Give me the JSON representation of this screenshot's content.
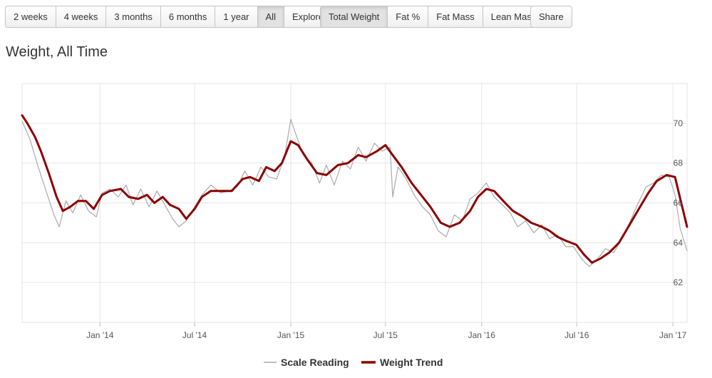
{
  "toolbar": {
    "range_buttons": [
      {
        "label": "2 weeks",
        "active": false
      },
      {
        "label": "4 weeks",
        "active": false
      },
      {
        "label": "3 months",
        "active": false
      },
      {
        "label": "6 months",
        "active": false
      },
      {
        "label": "1 year",
        "active": false
      },
      {
        "label": "All",
        "active": true
      },
      {
        "label": "Explore",
        "active": false
      }
    ],
    "metric_buttons": [
      {
        "label": "Total Weight",
        "active": true
      },
      {
        "label": "Fat %",
        "active": false
      },
      {
        "label": "Fat Mass",
        "active": false
      },
      {
        "label": "Lean Mass",
        "active": false
      }
    ],
    "share_label": "Share"
  },
  "chart_data": {
    "type": "line",
    "title": "Weight, All Time",
    "x_tick_labels": [
      "Jan '14",
      "Jul '14",
      "Jan '15",
      "Jul '15",
      "Jan '16",
      "Jul '16",
      "Jan '17"
    ],
    "x_ticks": [
      "2014-01-01",
      "2014-07-01",
      "2015-01-01",
      "2015-07-01",
      "2016-01-01",
      "2016-07-01",
      "2017-01-01"
    ],
    "xlim": [
      "2013-08-05",
      "2017-01-28"
    ],
    "y_ticks": [
      62,
      64,
      66,
      68,
      70
    ],
    "ylim": [
      60,
      72
    ],
    "grid": true,
    "legend_placement": "bottom-center",
    "series": [
      {
        "name": "Scale Reading",
        "color": "#aaaaaa",
        "points": [
          [
            "2013-08-05",
            70.1
          ],
          [
            "2013-08-20",
            69.2
          ],
          [
            "2013-09-05",
            67.8
          ],
          [
            "2013-09-20",
            66.6
          ],
          [
            "2013-10-05",
            65.4
          ],
          [
            "2013-10-15",
            64.8
          ],
          [
            "2013-10-28",
            66.1
          ],
          [
            "2013-11-10",
            65.5
          ],
          [
            "2013-11-25",
            66.4
          ],
          [
            "2013-12-10",
            65.6
          ],
          [
            "2013-12-25",
            65.3
          ],
          [
            "2014-01-05",
            66.5
          ],
          [
            "2014-01-20",
            66.7
          ],
          [
            "2014-02-05",
            66.3
          ],
          [
            "2014-02-20",
            66.9
          ],
          [
            "2014-03-05",
            65.9
          ],
          [
            "2014-03-20",
            66.7
          ],
          [
            "2014-04-05",
            65.8
          ],
          [
            "2014-04-20",
            66.6
          ],
          [
            "2014-05-05",
            65.9
          ],
          [
            "2014-05-20",
            65.2
          ],
          [
            "2014-06-01",
            64.8
          ],
          [
            "2014-06-15",
            65.1
          ],
          [
            "2014-07-01",
            65.8
          ],
          [
            "2014-07-15",
            66.4
          ],
          [
            "2014-08-01",
            66.9
          ],
          [
            "2014-08-20",
            66.5
          ],
          [
            "2014-09-05",
            66.6
          ],
          [
            "2014-09-20",
            66.8
          ],
          [
            "2014-10-05",
            67.6
          ],
          [
            "2014-10-20",
            66.9
          ],
          [
            "2014-11-05",
            67.8
          ],
          [
            "2014-11-20",
            67.3
          ],
          [
            "2014-12-05",
            67.2
          ],
          [
            "2014-12-20",
            68.3
          ],
          [
            "2015-01-01",
            70.2
          ],
          [
            "2015-01-10",
            69.5
          ],
          [
            "2015-01-25",
            68.4
          ],
          [
            "2015-02-10",
            68.0
          ],
          [
            "2015-02-25",
            67.0
          ],
          [
            "2015-03-10",
            67.9
          ],
          [
            "2015-03-25",
            66.9
          ],
          [
            "2015-04-10",
            68.1
          ],
          [
            "2015-04-25",
            67.7
          ],
          [
            "2015-05-10",
            68.8
          ],
          [
            "2015-05-25",
            68.1
          ],
          [
            "2015-06-10",
            69.0
          ],
          [
            "2015-06-25",
            68.6
          ],
          [
            "2015-07-10",
            68.8
          ],
          [
            "2015-07-15",
            66.3
          ],
          [
            "2015-07-25",
            67.8
          ],
          [
            "2015-08-10",
            67.2
          ],
          [
            "2015-08-25",
            66.4
          ],
          [
            "2015-09-10",
            65.8
          ],
          [
            "2015-09-25",
            65.4
          ],
          [
            "2015-10-10",
            64.6
          ],
          [
            "2015-10-25",
            64.3
          ],
          [
            "2015-11-10",
            65.4
          ],
          [
            "2015-11-25",
            65.1
          ],
          [
            "2015-12-10",
            66.2
          ],
          [
            "2015-12-25",
            66.5
          ],
          [
            "2016-01-10",
            67.0
          ],
          [
            "2016-01-25",
            66.3
          ],
          [
            "2016-02-10",
            65.9
          ],
          [
            "2016-02-25",
            65.5
          ],
          [
            "2016-03-10",
            64.8
          ],
          [
            "2016-03-25",
            65.1
          ],
          [
            "2016-04-10",
            64.5
          ],
          [
            "2016-04-25",
            64.9
          ],
          [
            "2016-05-10",
            64.2
          ],
          [
            "2016-05-25",
            64.4
          ],
          [
            "2016-06-10",
            63.8
          ],
          [
            "2016-06-25",
            63.8
          ],
          [
            "2016-07-10",
            63.2
          ],
          [
            "2016-07-25",
            62.8
          ],
          [
            "2016-08-10",
            63.2
          ],
          [
            "2016-08-25",
            63.7
          ],
          [
            "2016-09-10",
            63.5
          ],
          [
            "2016-09-25",
            64.2
          ],
          [
            "2016-10-10",
            65.0
          ],
          [
            "2016-10-25",
            65.9
          ],
          [
            "2016-11-10",
            66.8
          ],
          [
            "2016-11-25",
            67.0
          ],
          [
            "2016-12-10",
            67.4
          ],
          [
            "2016-12-25",
            67.3
          ],
          [
            "2017-01-05",
            66.4
          ],
          [
            "2017-01-15",
            64.7
          ],
          [
            "2017-01-28",
            63.6
          ]
        ]
      },
      {
        "name": "Weight Trend",
        "color": "#8b0000",
        "points": [
          [
            "2013-08-05",
            70.4
          ],
          [
            "2013-08-15",
            70.0
          ],
          [
            "2013-08-30",
            69.3
          ],
          [
            "2013-09-10",
            68.6
          ],
          [
            "2013-09-25",
            67.5
          ],
          [
            "2013-10-10",
            66.3
          ],
          [
            "2013-10-22",
            65.6
          ],
          [
            "2013-11-05",
            65.8
          ],
          [
            "2013-11-20",
            66.1
          ],
          [
            "2013-12-05",
            66.1
          ],
          [
            "2013-12-20",
            65.7
          ],
          [
            "2014-01-05",
            66.4
          ],
          [
            "2014-01-20",
            66.6
          ],
          [
            "2014-02-10",
            66.7
          ],
          [
            "2014-02-25",
            66.3
          ],
          [
            "2014-03-15",
            66.2
          ],
          [
            "2014-04-01",
            66.4
          ],
          [
            "2014-04-15",
            66.0
          ],
          [
            "2014-05-01",
            66.3
          ],
          [
            "2014-05-15",
            65.9
          ],
          [
            "2014-06-01",
            65.7
          ],
          [
            "2014-06-15",
            65.2
          ],
          [
            "2014-07-01",
            65.7
          ],
          [
            "2014-07-15",
            66.3
          ],
          [
            "2014-08-01",
            66.6
          ],
          [
            "2014-08-20",
            66.6
          ],
          [
            "2014-09-10",
            66.6
          ],
          [
            "2014-10-01",
            67.2
          ],
          [
            "2014-10-15",
            67.3
          ],
          [
            "2014-11-01",
            67.1
          ],
          [
            "2014-11-15",
            67.8
          ],
          [
            "2014-12-01",
            67.6
          ],
          [
            "2014-12-15",
            68.0
          ],
          [
            "2015-01-01",
            69.1
          ],
          [
            "2015-01-15",
            68.9
          ],
          [
            "2015-02-01",
            68.2
          ],
          [
            "2015-02-20",
            67.5
          ],
          [
            "2015-03-10",
            67.4
          ],
          [
            "2015-04-01",
            67.9
          ],
          [
            "2015-04-20",
            68.0
          ],
          [
            "2015-05-10",
            68.4
          ],
          [
            "2015-05-25",
            68.3
          ],
          [
            "2015-06-15",
            68.6
          ],
          [
            "2015-07-01",
            68.9
          ],
          [
            "2015-07-15",
            68.4
          ],
          [
            "2015-08-01",
            67.8
          ],
          [
            "2015-08-20",
            67.0
          ],
          [
            "2015-09-10",
            66.3
          ],
          [
            "2015-09-25",
            65.8
          ],
          [
            "2015-10-15",
            65.0
          ],
          [
            "2015-11-01",
            64.8
          ],
          [
            "2015-11-20",
            65.0
          ],
          [
            "2015-12-10",
            65.6
          ],
          [
            "2015-12-25",
            66.3
          ],
          [
            "2016-01-10",
            66.7
          ],
          [
            "2016-01-25",
            66.6
          ],
          [
            "2016-02-15",
            66.0
          ],
          [
            "2016-03-01",
            65.6
          ],
          [
            "2016-03-20",
            65.3
          ],
          [
            "2016-04-05",
            65.0
          ],
          [
            "2016-04-25",
            64.8
          ],
          [
            "2016-05-10",
            64.6
          ],
          [
            "2016-05-25",
            64.3
          ],
          [
            "2016-06-10",
            64.1
          ],
          [
            "2016-06-30",
            63.9
          ],
          [
            "2016-07-15",
            63.4
          ],
          [
            "2016-07-30",
            63.0
          ],
          [
            "2016-08-15",
            63.2
          ],
          [
            "2016-09-01",
            63.5
          ],
          [
            "2016-09-20",
            64.0
          ],
          [
            "2016-10-10",
            64.9
          ],
          [
            "2016-10-30",
            65.8
          ],
          [
            "2016-11-15",
            66.5
          ],
          [
            "2016-12-01",
            67.1
          ],
          [
            "2016-12-20",
            67.4
          ],
          [
            "2017-01-05",
            67.3
          ],
          [
            "2017-01-15",
            66.2
          ],
          [
            "2017-01-28",
            64.8
          ]
        ]
      }
    ]
  }
}
